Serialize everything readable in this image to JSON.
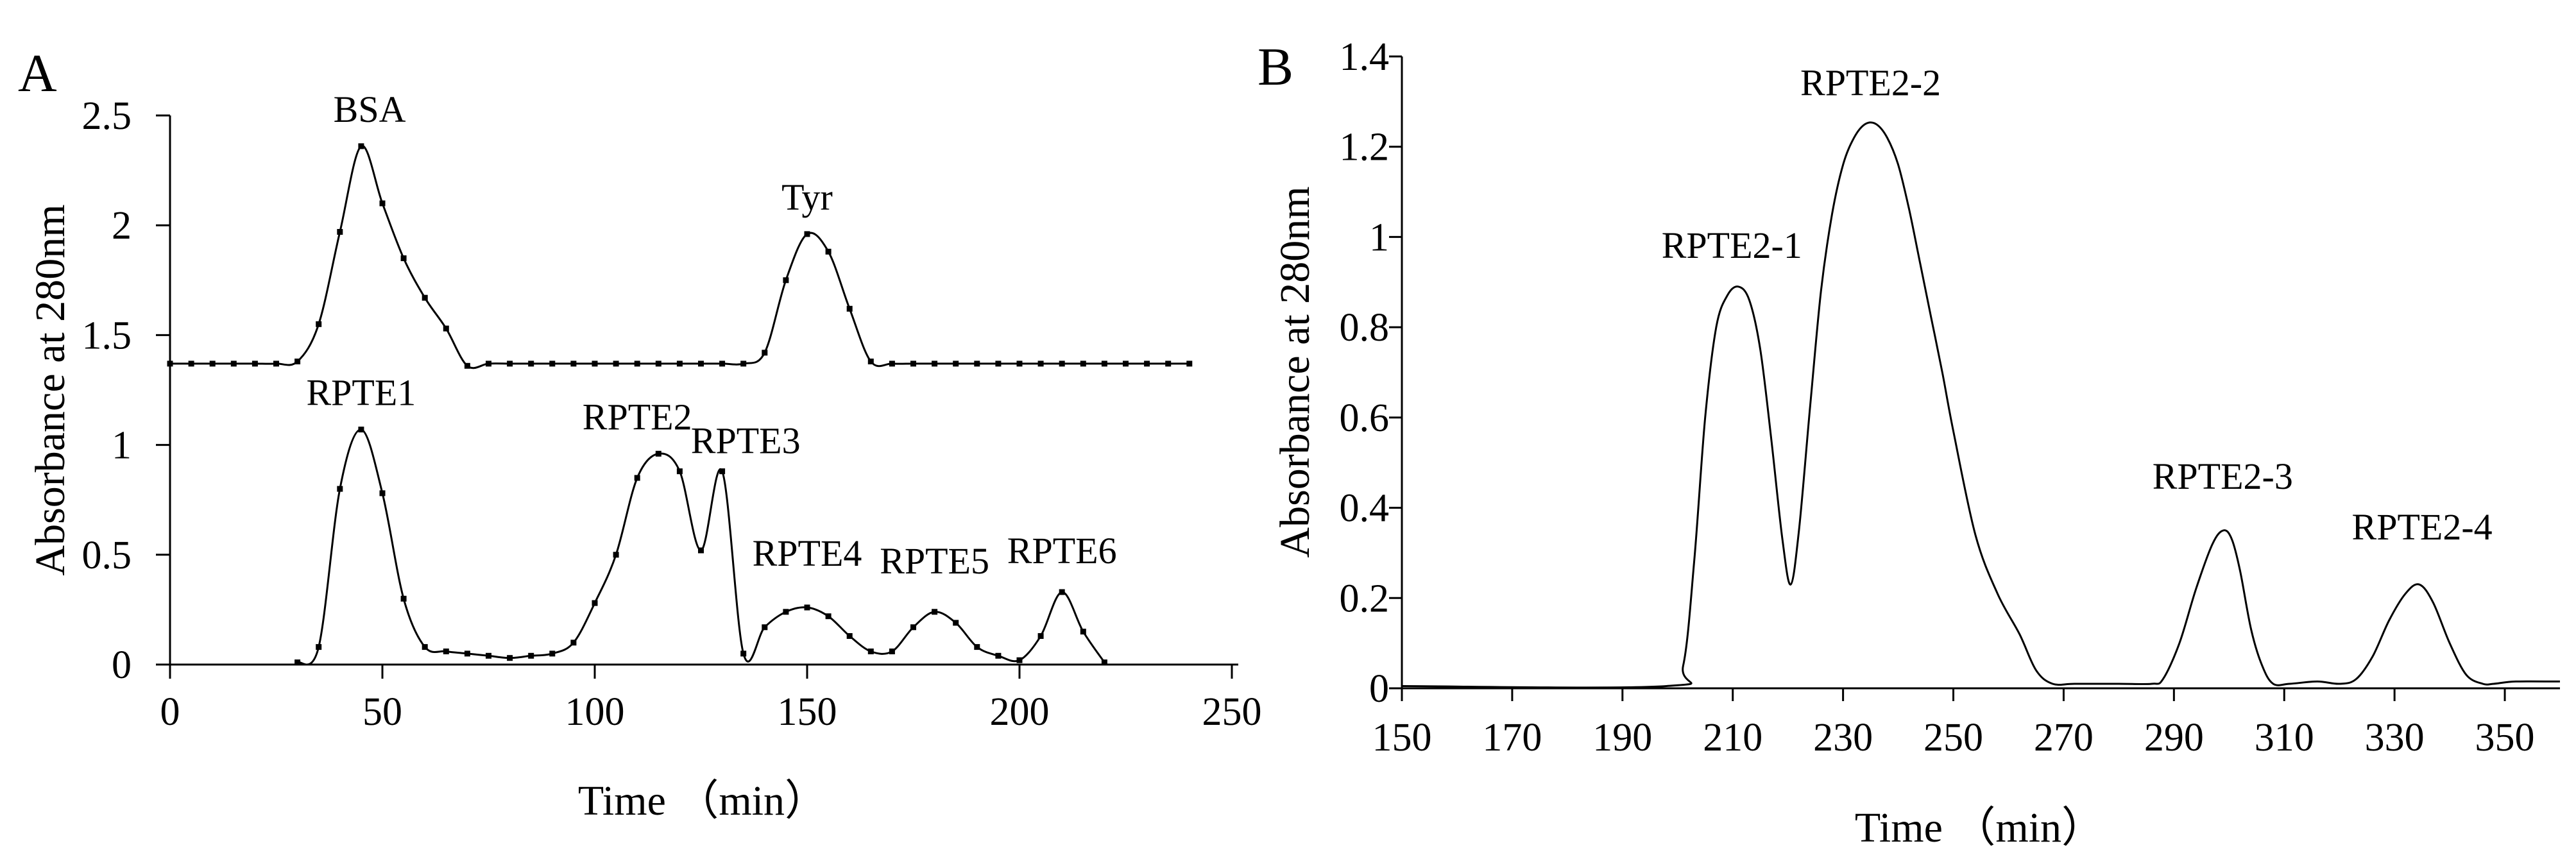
{
  "chart_data": [
    {
      "type": "line",
      "panel_label": "A",
      "xlabel": "Time （min）",
      "ylabel": "Absorbance at 280nm",
      "xlim": [
        0,
        250
      ],
      "ylim": [
        0,
        2.5
      ],
      "x_ticks": [
        "0",
        "50",
        "100",
        "150",
        "200",
        "250"
      ],
      "y_ticks": [
        "0",
        "0.5",
        "1",
        "1.5",
        "2",
        "2.5"
      ],
      "x_tick_values": [
        0,
        50,
        100,
        150,
        200,
        250
      ],
      "y_tick_values": [
        0,
        0.5,
        1,
        1.5,
        2,
        2.5
      ],
      "grid": false,
      "legend": "none",
      "markers": "small square dots",
      "series": [
        {
          "x": [
            0,
            5,
            10,
            15,
            20,
            25,
            30,
            35,
            40,
            45,
            50,
            55,
            60,
            65,
            70,
            75,
            80,
            85,
            90,
            95,
            100,
            105,
            110,
            115,
            120,
            125,
            130,
            135,
            140,
            145,
            150,
            155,
            160,
            165,
            170,
            175,
            180,
            185,
            190,
            195,
            200,
            205,
            210,
            215,
            220,
            225,
            230,
            235,
            240
          ],
          "y": [
            1.37,
            1.37,
            1.37,
            1.37,
            1.37,
            1.37,
            1.38,
            1.55,
            1.97,
            2.36,
            2.1,
            1.85,
            1.67,
            1.53,
            1.36,
            1.37,
            1.37,
            1.37,
            1.37,
            1.37,
            1.37,
            1.37,
            1.37,
            1.37,
            1.37,
            1.37,
            1.37,
            1.37,
            1.42,
            1.75,
            1.96,
            1.88,
            1.62,
            1.38,
            1.37,
            1.37,
            1.37,
            1.37,
            1.37,
            1.37,
            1.37,
            1.37,
            1.37,
            1.37,
            1.37,
            1.37,
            1.37,
            1.37,
            1.37
          ]
        },
        {
          "x": [
            30,
            35,
            40,
            45,
            50,
            55,
            60,
            65,
            70,
            75,
            80,
            85,
            90,
            95,
            100,
            105,
            110,
            115,
            120,
            125,
            130,
            135,
            140,
            145,
            150,
            155,
            160,
            165,
            170,
            175,
            180,
            185,
            190,
            195,
            200,
            205,
            210,
            215,
            220
          ],
          "y": [
            0.01,
            0.08,
            0.8,
            1.07,
            0.78,
            0.3,
            0.08,
            0.06,
            0.05,
            0.04,
            0.03,
            0.04,
            0.05,
            0.1,
            0.28,
            0.5,
            0.85,
            0.96,
            0.88,
            0.52,
            0.88,
            0.05,
            0.17,
            0.24,
            0.26,
            0.22,
            0.13,
            0.06,
            0.06,
            0.17,
            0.24,
            0.19,
            0.08,
            0.04,
            0.02,
            0.13,
            0.33,
            0.15,
            0.01
          ]
        }
      ],
      "annotations": [
        {
          "text": "BSA",
          "x": 47,
          "y": 2.36
        },
        {
          "text": "Tyr",
          "x": 150,
          "y": 1.96
        },
        {
          "text": "RPTE1",
          "x": 45,
          "y": 1.07
        },
        {
          "text": "RPTE2",
          "x": 110,
          "y": 0.96
        },
        {
          "text": "RPTE3",
          "x": 131,
          "y": 0.88
        },
        {
          "text": "RPTE4",
          "x": 150,
          "y": 0.26
        },
        {
          "text": "RPTE5",
          "x": 180,
          "y": 0.24
        },
        {
          "text": "RPTE6",
          "x": 210,
          "y": 0.33
        }
      ]
    },
    {
      "type": "line",
      "panel_label": "B",
      "xlabel": "Time （min）",
      "ylabel": "Absorbance at 280nm",
      "xlim": [
        150,
        360
      ],
      "ylim": [
        0,
        1.4
      ],
      "x_ticks": [
        "150",
        "170",
        "190",
        "210",
        "230",
        "250",
        "270",
        "290",
        "310",
        "330",
        "350"
      ],
      "y_ticks": [
        "0",
        "0.2",
        "0.4",
        "0.6",
        "0.8",
        "1",
        "1.2",
        "1.4"
      ],
      "x_tick_values": [
        150,
        170,
        190,
        210,
        230,
        250,
        270,
        290,
        310,
        330,
        350
      ],
      "y_tick_values": [
        0,
        0.2,
        0.4,
        0.6,
        0.8,
        1,
        1.2,
        1.4
      ],
      "grid": false,
      "legend": "none",
      "series": [
        {
          "x": [
            150,
            198,
            201,
            203,
            205,
            207,
            209,
            211,
            213,
            215,
            217,
            219,
            220.5,
            222,
            224,
            226,
            228,
            230,
            232,
            234,
            236,
            238,
            240,
            242,
            244,
            246,
            248,
            250,
            254,
            258,
            262,
            265,
            268,
            272,
            280,
            286,
            288,
            291,
            294,
            297,
            299,
            300.5,
            302,
            304,
            306,
            308,
            311,
            316,
            320,
            323,
            326,
            329,
            332,
            334.5,
            337,
            340,
            343,
            346,
            348,
            352,
            360
          ],
          "y": [
            0.005,
            0.005,
            0.05,
            0.28,
            0.6,
            0.8,
            0.87,
            0.89,
            0.86,
            0.75,
            0.55,
            0.33,
            0.23,
            0.35,
            0.62,
            0.88,
            1.05,
            1.16,
            1.22,
            1.25,
            1.25,
            1.22,
            1.16,
            1.06,
            0.94,
            0.82,
            0.7,
            0.57,
            0.34,
            0.21,
            0.12,
            0.04,
            0.01,
            0.01,
            0.01,
            0.01,
            0.02,
            0.1,
            0.22,
            0.32,
            0.35,
            0.33,
            0.26,
            0.13,
            0.05,
            0.01,
            0.01,
            0.015,
            0.01,
            0.02,
            0.07,
            0.15,
            0.21,
            0.23,
            0.19,
            0.1,
            0.03,
            0.01,
            0.01,
            0.015,
            0.015
          ]
        }
      ],
      "annotations": [
        {
          "text": "RPTE2-1",
          "x": 211,
          "y": 0.89
        },
        {
          "text": "RPTE2-2",
          "x": 235,
          "y": 1.25
        },
        {
          "text": "RPTE2-3",
          "x": 300,
          "y": 0.35
        },
        {
          "text": "RPTE2-4",
          "x": 335,
          "y": 0.23
        }
      ]
    }
  ]
}
